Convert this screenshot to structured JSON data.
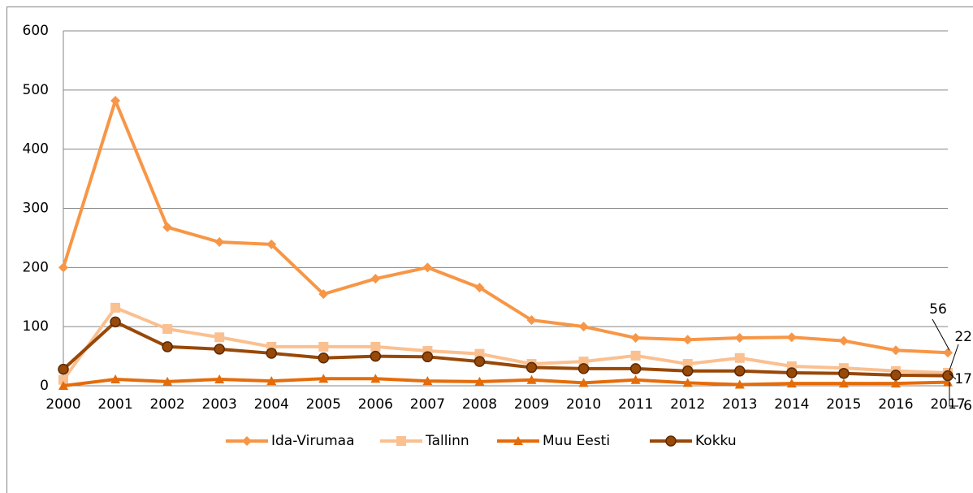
{
  "chart_data": {
    "type": "line",
    "categories": [
      "2000",
      "2001",
      "2002",
      "2003",
      "2004",
      "2005",
      "2006",
      "2007",
      "2008",
      "2009",
      "2010",
      "2011",
      "2012",
      "2013",
      "2014",
      "2015",
      "2016",
      "2017"
    ],
    "series": [
      {
        "name": "Ida-Virumaa",
        "color": "#f79646",
        "marker": "diamond",
        "values": [
          200,
          482,
          268,
          243,
          239,
          155,
          181,
          200,
          166,
          111,
          100,
          81,
          78,
          81,
          82,
          76,
          60,
          56
        ]
      },
      {
        "name": "Tallinn",
        "color": "#fac090",
        "marker": "square",
        "values": [
          10,
          132,
          96,
          82,
          66,
          66,
          66,
          59,
          54,
          37,
          41,
          51,
          37,
          47,
          33,
          30,
          25,
          22
        ]
      },
      {
        "name": "Muu Eesti",
        "color": "#e46c0a",
        "marker": "triangle",
        "values": [
          0,
          11,
          7,
          11,
          8,
          12,
          12,
          8,
          7,
          10,
          5,
          10,
          5,
          2,
          4,
          4,
          4,
          6
        ]
      },
      {
        "name": "Kokku",
        "color": "#984807",
        "marker": "circle",
        "values": [
          28,
          108,
          66,
          62,
          55,
          47,
          50,
          49,
          41,
          31,
          29,
          29,
          25,
          25,
          22,
          21,
          18,
          17
        ]
      }
    ],
    "ylim": [
      0,
      600
    ],
    "yticks": [
      0,
      100,
      200,
      300,
      400,
      500,
      600
    ],
    "grid": true,
    "legend": "bottom"
  }
}
